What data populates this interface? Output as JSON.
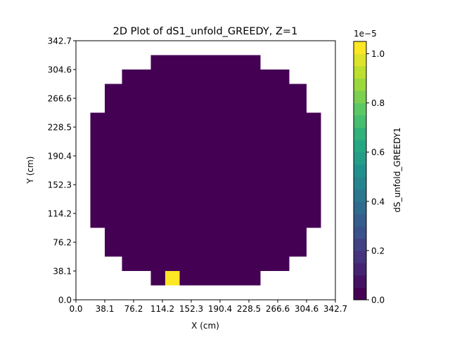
{
  "chart_data": {
    "type": "heatmap",
    "title": "2D Plot of dS1_unfold_GREEDY, Z=1",
    "xlabel": "X (cm)",
    "ylabel": "Y (cm)",
    "xlim": [
      0.0,
      342.7
    ],
    "ylim": [
      0.0,
      342.7
    ],
    "xticks": [
      "0.0",
      "38.1",
      "76.2",
      "114.2",
      "152.3",
      "190.4",
      "228.5",
      "266.6",
      "304.6",
      "342.7"
    ],
    "yticks": [
      "0.0",
      "38.1",
      "76.2",
      "114.2",
      "152.3",
      "190.4",
      "228.5",
      "266.6",
      "304.6",
      "342.7"
    ],
    "grid": false,
    "bin_size_cm": 19.04,
    "n_bins": 18,
    "row_x_ranges_cm": [
      {
        "y": [
          19.04,
          38.08
        ],
        "x": [
          99.0,
          243.7
        ]
      },
      {
        "y": [
          38.08,
          57.12
        ],
        "x": [
          60.9,
          281.8
        ]
      },
      {
        "y": [
          57.12,
          95.2
        ],
        "x": [
          38.1,
          304.6
        ]
      },
      {
        "y": [
          95.2,
          247.5
        ],
        "x": [
          19.04,
          323.7
        ]
      },
      {
        "y": [
          247.5,
          285.6
        ],
        "x": [
          38.1,
          304.6
        ]
      },
      {
        "y": [
          285.6,
          304.6
        ],
        "x": [
          60.9,
          281.8
        ]
      },
      {
        "y": [
          304.6,
          323.7
        ],
        "x": [
          99.0,
          243.7
        ]
      }
    ],
    "background_value": 0.0,
    "hot_cells": [
      {
        "x": [
          118.0,
          137.1
        ],
        "y": [
          19.04,
          38.08
        ],
        "value": 1.05e-05
      }
    ],
    "colorbar": {
      "label": "dS_unfold_GREEDY1",
      "colormap": "viridis",
      "min": 0.0,
      "max": 1.05e-05,
      "offset_text": "1e−5",
      "ticks": [
        "0.0",
        "0.2",
        "0.4",
        "0.6",
        "0.8",
        "1.0"
      ],
      "tick_values": [
        0.0,
        0.2,
        0.4,
        0.6,
        0.8,
        1.0
      ],
      "levels": 21
    },
    "colors": {
      "low": "#440154",
      "high": "#fde725"
    }
  }
}
